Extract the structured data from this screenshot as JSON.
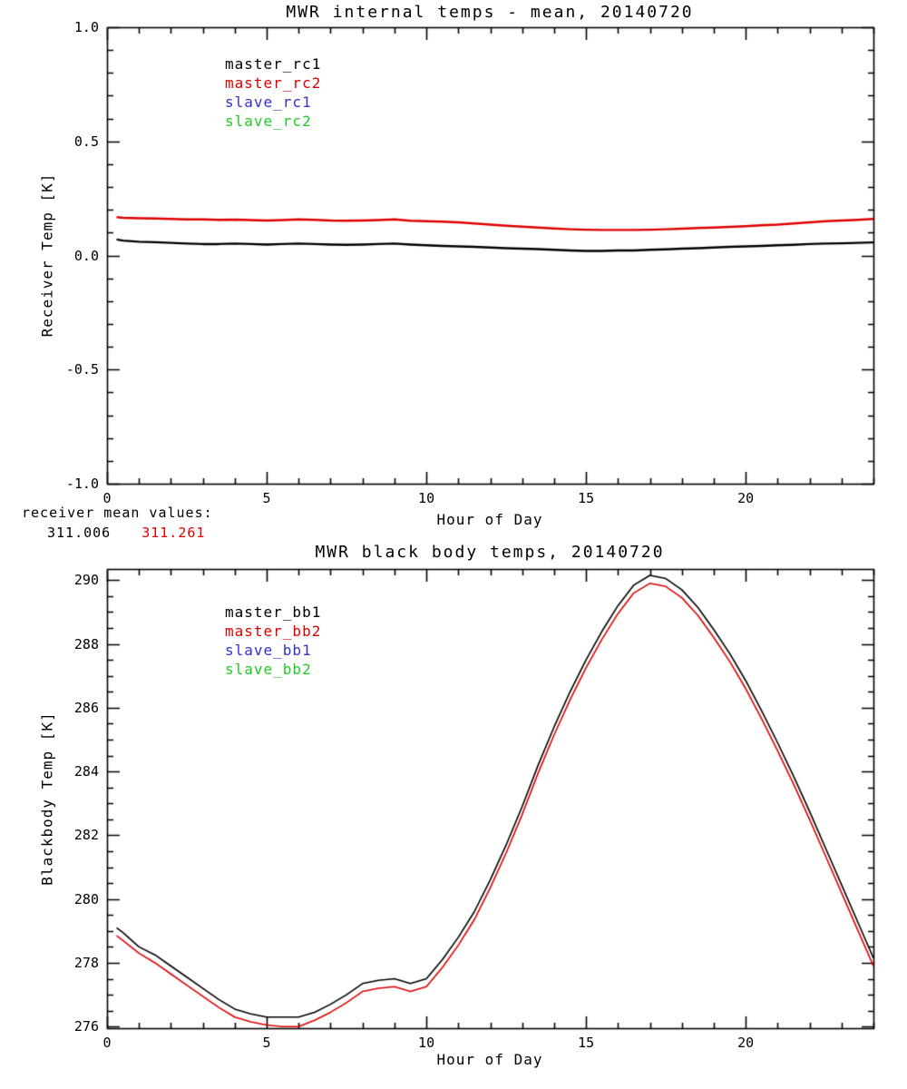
{
  "annotations": {
    "receiver_mean_label": "receiver mean values:",
    "receiver_mean_values": [
      {
        "text": "311.006",
        "color": "#000000"
      },
      {
        "text": "311.261",
        "color": "#dd0000"
      }
    ]
  },
  "chart_data": [
    {
      "type": "line",
      "title": "MWR internal temps - mean, 20140720",
      "xlabel": "Hour of Day",
      "ylabel": "Receiver Temp [K]",
      "xlim": [
        0,
        24
      ],
      "ylim": [
        -1.0,
        1.0
      ],
      "grid": false,
      "legend_position": "upper-left-inside",
      "xticks": {
        "values": [
          0,
          5,
          10,
          15,
          20
        ],
        "labels": [
          "0",
          "5",
          "10",
          "15",
          "20"
        ],
        "minor_step": 1
      },
      "yticks": {
        "values": [
          -1.0,
          -0.5,
          0.0,
          0.5,
          1.0
        ],
        "labels": [
          "-1.0",
          "-0.5",
          "0.0",
          "0.5",
          "1.0"
        ],
        "minor_step": 0.1
      },
      "legend": [
        {
          "label": "master_rc1",
          "color": "#000000"
        },
        {
          "label": "master_rc2",
          "color": "#dd0000"
        },
        {
          "label": "slave_rc1",
          "color": "#3333cc"
        },
        {
          "label": "slave_rc2",
          "color": "#22cc22"
        }
      ],
      "series": [
        {
          "name": "master_rc1",
          "color": "#000000",
          "x": [
            0.3,
            0.5,
            1,
            1.5,
            2,
            2.5,
            3,
            3.5,
            4,
            4.5,
            5,
            5.5,
            6,
            6.5,
            7,
            7.5,
            8,
            8.5,
            9,
            9.5,
            10,
            10.5,
            11,
            11.5,
            12,
            12.5,
            13,
            13.5,
            14,
            14.5,
            15,
            15.5,
            16,
            16.5,
            17,
            17.5,
            18,
            18.5,
            19,
            19.5,
            20,
            20.5,
            21,
            21.5,
            22,
            22.5,
            23,
            23.5,
            24
          ],
          "y": [
            0.07,
            0.065,
            0.06,
            0.058,
            0.055,
            0.052,
            0.05,
            0.05,
            0.052,
            0.05,
            0.048,
            0.05,
            0.052,
            0.05,
            0.048,
            0.047,
            0.048,
            0.05,
            0.052,
            0.048,
            0.045,
            0.042,
            0.04,
            0.038,
            0.035,
            0.032,
            0.03,
            0.028,
            0.025,
            0.022,
            0.02,
            0.02,
            0.022,
            0.022,
            0.025,
            0.027,
            0.03,
            0.032,
            0.035,
            0.038,
            0.04,
            0.042,
            0.045,
            0.047,
            0.05,
            0.052,
            0.053,
            0.055,
            0.057
          ]
        },
        {
          "name": "master_rc2",
          "color": "#dd0000",
          "x": [
            0.3,
            0.5,
            1,
            1.5,
            2,
            2.5,
            3,
            3.5,
            4,
            4.5,
            5,
            5.5,
            6,
            6.5,
            7,
            7.5,
            8,
            8.5,
            9,
            9.5,
            10,
            10.5,
            11,
            11.5,
            12,
            12.5,
            13,
            13.5,
            14,
            14.5,
            15,
            15.5,
            16,
            16.5,
            17,
            17.5,
            18,
            18.5,
            19,
            19.5,
            20,
            20.5,
            21,
            21.5,
            22,
            22.5,
            23,
            23.5,
            24
          ],
          "y": [
            0.168,
            0.165,
            0.163,
            0.162,
            0.16,
            0.158,
            0.158,
            0.156,
            0.157,
            0.155,
            0.153,
            0.155,
            0.158,
            0.156,
            0.153,
            0.152,
            0.153,
            0.155,
            0.158,
            0.152,
            0.15,
            0.148,
            0.145,
            0.14,
            0.135,
            0.13,
            0.126,
            0.122,
            0.118,
            0.115,
            0.113,
            0.112,
            0.112,
            0.112,
            0.113,
            0.115,
            0.117,
            0.12,
            0.122,
            0.125,
            0.128,
            0.132,
            0.135,
            0.14,
            0.145,
            0.15,
            0.153,
            0.156,
            0.16
          ]
        }
      ]
    },
    {
      "type": "line",
      "title": "MWR black body temps, 20140720",
      "xlabel": "Hour of Day",
      "ylabel": "Blackbody Temp [K]",
      "xlim": [
        0,
        24
      ],
      "ylim": [
        275.95,
        290.35
      ],
      "grid": false,
      "legend_position": "upper-left-inside",
      "xticks": {
        "values": [
          0,
          5,
          10,
          15,
          20
        ],
        "labels": [
          "0",
          "5",
          "10",
          "15",
          "20"
        ],
        "minor_step": 1
      },
      "yticks": {
        "values": [
          276,
          278,
          280,
          282,
          284,
          286,
          288,
          290
        ],
        "labels": [
          "276",
          "278",
          "280",
          "282",
          "284",
          "286",
          "288",
          "290"
        ],
        "minor_step": 0.5
      },
      "legend": [
        {
          "label": "master_bb1",
          "color": "#000000"
        },
        {
          "label": "master_bb2",
          "color": "#dd0000"
        },
        {
          "label": "slave_bb1",
          "color": "#3333cc"
        },
        {
          "label": "slave_bb2",
          "color": "#22cc22"
        }
      ],
      "series": [
        {
          "name": "master_bb1",
          "color": "#000000",
          "x": [
            0.3,
            0.5,
            1,
            1.5,
            2,
            2.5,
            3,
            3.5,
            4,
            4.5,
            5,
            5.5,
            6,
            6.5,
            7,
            7.5,
            8,
            8.5,
            9,
            9.5,
            10,
            10.5,
            11,
            11.5,
            12,
            12.5,
            13,
            13.5,
            14,
            14.5,
            15,
            15.5,
            16,
            16.5,
            17,
            17.5,
            18,
            18.5,
            19,
            19.5,
            20,
            20.5,
            21,
            21.5,
            22,
            22.5,
            23,
            23.5,
            24
          ],
          "y": [
            279.1,
            278.95,
            278.5,
            278.25,
            277.9,
            277.55,
            277.2,
            276.85,
            276.55,
            276.4,
            276.3,
            276.3,
            276.3,
            276.45,
            276.7,
            277.0,
            277.35,
            277.45,
            277.5,
            277.35,
            277.5,
            278.1,
            278.8,
            279.6,
            280.6,
            281.7,
            282.9,
            284.2,
            285.4,
            286.5,
            287.5,
            288.4,
            289.2,
            289.85,
            290.15,
            290.05,
            289.7,
            289.15,
            288.45,
            287.7,
            286.85,
            285.9,
            284.9,
            283.85,
            282.75,
            281.6,
            280.45,
            279.3,
            278.15
          ]
        },
        {
          "name": "master_bb2",
          "color": "#dd0000",
          "x": [
            0.3,
            0.5,
            1,
            1.5,
            2,
            2.5,
            3,
            3.5,
            4,
            4.5,
            5,
            5.5,
            6,
            6.5,
            7,
            7.5,
            8,
            8.5,
            9,
            9.5,
            10,
            10.5,
            11,
            11.5,
            12,
            12.5,
            13,
            13.5,
            14,
            14.5,
            15,
            15.5,
            16,
            16.5,
            17,
            17.5,
            18,
            18.5,
            19,
            19.5,
            20,
            20.5,
            21,
            21.5,
            22,
            22.5,
            23,
            23.5,
            24
          ],
          "y": [
            278.85,
            278.7,
            278.3,
            278.0,
            277.65,
            277.3,
            276.95,
            276.6,
            276.3,
            276.15,
            276.05,
            276.0,
            276.0,
            276.2,
            276.45,
            276.75,
            277.1,
            277.2,
            277.25,
            277.1,
            277.25,
            277.85,
            278.55,
            279.35,
            280.35,
            281.45,
            282.65,
            283.95,
            285.15,
            286.25,
            287.25,
            288.15,
            288.95,
            289.6,
            289.9,
            289.8,
            289.45,
            288.9,
            288.2,
            287.45,
            286.6,
            285.65,
            284.65,
            283.6,
            282.5,
            281.35,
            280.2,
            279.05,
            277.9
          ]
        }
      ]
    }
  ]
}
